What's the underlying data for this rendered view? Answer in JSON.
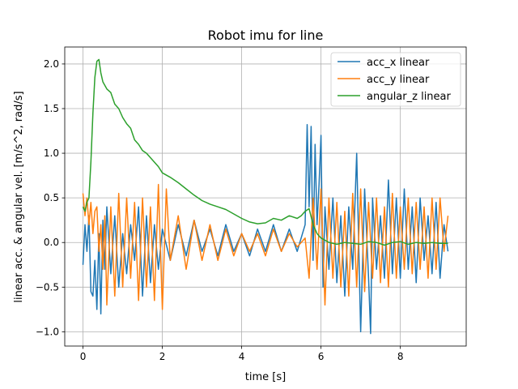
{
  "chart_data": {
    "type": "line",
    "title": "Robot imu for line",
    "xlabel": "time [s]",
    "ylabel": "linear acc. & angular vel. [m/s^2, rad/s]",
    "xlim": [
      -0.46,
      9.66
    ],
    "ylim": [
      -1.16,
      2.19
    ],
    "xticks": [
      0,
      2,
      4,
      6,
      8
    ],
    "yticks": [
      -1.0,
      -0.5,
      0.0,
      0.5,
      1.0,
      1.5,
      2.0
    ],
    "xtick_labels": [
      "0",
      "2",
      "4",
      "6",
      "8"
    ],
    "ytick_labels": [
      "−1.0",
      "−0.5",
      "0.0",
      "0.5",
      "1.0",
      "1.5",
      "2.0"
    ],
    "grid": true,
    "legend_position": "top-right",
    "series": [
      {
        "name": "acc_x linear",
        "color": "#1f77b4",
        "x": [
          0.0,
          0.05,
          0.1,
          0.15,
          0.2,
          0.25,
          0.3,
          0.35,
          0.4,
          0.45,
          0.5,
          0.55,
          0.6,
          0.7,
          0.8,
          0.9,
          1.0,
          1.1,
          1.2,
          1.3,
          1.4,
          1.5,
          1.6,
          1.7,
          1.8,
          1.9,
          2.0,
          2.2,
          2.4,
          2.6,
          2.8,
          3.0,
          3.2,
          3.4,
          3.6,
          3.8,
          4.0,
          4.2,
          4.4,
          4.6,
          4.8,
          5.0,
          5.2,
          5.4,
          5.6,
          5.65,
          5.7,
          5.75,
          5.8,
          5.85,
          5.9,
          5.95,
          6.0,
          6.05,
          6.1,
          6.2,
          6.3,
          6.4,
          6.5,
          6.6,
          6.7,
          6.8,
          6.9,
          7.0,
          7.1,
          7.2,
          7.25,
          7.3,
          7.4,
          7.5,
          7.6,
          7.7,
          7.8,
          7.9,
          8.0,
          8.1,
          8.2,
          8.3,
          8.4,
          8.5,
          8.6,
          8.7,
          8.8,
          8.9,
          9.0,
          9.1,
          9.2
        ],
        "values": [
          -0.25,
          0.2,
          -0.1,
          0.3,
          -0.55,
          -0.6,
          -0.2,
          -0.75,
          0.1,
          -0.8,
          0.25,
          -0.3,
          0.4,
          -0.35,
          0.3,
          -0.5,
          0.1,
          -0.35,
          0.2,
          -0.2,
          0.4,
          -0.6,
          0.3,
          -0.45,
          0.2,
          -0.3,
          0.15,
          -0.2,
          0.2,
          -0.15,
          0.25,
          -0.1,
          0.15,
          -0.15,
          0.2,
          -0.1,
          0.1,
          -0.15,
          0.15,
          -0.1,
          0.2,
          -0.1,
          0.15,
          -0.1,
          0.2,
          1.32,
          0.4,
          1.3,
          -0.2,
          1.1,
          0.2,
          0.65,
          1.2,
          -0.5,
          0.4,
          -0.3,
          0.5,
          -0.45,
          0.3,
          -0.6,
          0.4,
          -0.3,
          1.0,
          -1.0,
          0.6,
          -0.4,
          -1.02,
          0.5,
          -0.3,
          0.3,
          -0.4,
          0.7,
          -0.35,
          0.5,
          -0.4,
          0.6,
          -0.3,
          0.4,
          -0.45,
          0.5,
          -0.2,
          0.3,
          -0.35,
          0.45,
          -0.4,
          0.2,
          -0.1
        ]
      },
      {
        "name": "acc_y linear",
        "color": "#ff7f0e",
        "x": [
          0.0,
          0.05,
          0.1,
          0.15,
          0.2,
          0.25,
          0.3,
          0.35,
          0.4,
          0.45,
          0.5,
          0.55,
          0.6,
          0.7,
          0.8,
          0.9,
          1.0,
          1.1,
          1.2,
          1.3,
          1.4,
          1.5,
          1.6,
          1.7,
          1.8,
          1.9,
          2.0,
          2.1,
          2.2,
          2.4,
          2.6,
          2.8,
          3.0,
          3.2,
          3.4,
          3.6,
          3.8,
          4.0,
          4.2,
          4.4,
          4.6,
          4.8,
          5.0,
          5.2,
          5.4,
          5.6,
          5.7,
          5.8,
          5.9,
          6.0,
          6.1,
          6.2,
          6.3,
          6.4,
          6.5,
          6.6,
          6.7,
          6.8,
          6.9,
          7.0,
          7.1,
          7.2,
          7.3,
          7.4,
          7.5,
          7.6,
          7.7,
          7.8,
          7.9,
          8.0,
          8.1,
          8.2,
          8.3,
          8.4,
          8.5,
          8.6,
          8.7,
          8.8,
          8.9,
          9.0,
          9.1,
          9.2
        ],
        "values": [
          0.55,
          0.3,
          0.5,
          0.2,
          0.45,
          0.1,
          0.35,
          0.4,
          -0.1,
          0.2,
          -0.3,
          0.3,
          -0.7,
          0.4,
          -0.6,
          0.55,
          -0.5,
          0.5,
          -0.4,
          0.45,
          -0.65,
          0.5,
          -0.5,
          0.4,
          -0.65,
          0.65,
          -0.75,
          0.6,
          -0.2,
          0.3,
          -0.3,
          0.25,
          -0.2,
          0.2,
          -0.2,
          0.15,
          -0.15,
          0.1,
          -0.1,
          0.1,
          -0.15,
          0.15,
          -0.1,
          0.1,
          -0.05,
          0.05,
          -0.4,
          0.5,
          -0.3,
          0.6,
          -0.7,
          0.5,
          -0.4,
          0.45,
          -0.5,
          0.35,
          -0.6,
          0.55,
          -0.5,
          0.6,
          -0.55,
          0.45,
          -0.4,
          0.5,
          -0.45,
          0.4,
          -0.5,
          0.55,
          -0.4,
          0.4,
          -0.3,
          0.5,
          -0.35,
          0.45,
          -0.3,
          0.4,
          -0.4,
          0.5,
          -0.3,
          0.5,
          -0.1,
          0.3
        ]
      },
      {
        "name": "angular_z linear",
        "color": "#2ca02c",
        "x": [
          0.0,
          0.05,
          0.1,
          0.15,
          0.2,
          0.25,
          0.3,
          0.35,
          0.4,
          0.45,
          0.5,
          0.6,
          0.7,
          0.8,
          0.9,
          1.0,
          1.1,
          1.2,
          1.3,
          1.4,
          1.5,
          1.6,
          1.7,
          1.8,
          1.9,
          2.0,
          2.2,
          2.4,
          2.6,
          2.8,
          3.0,
          3.2,
          3.4,
          3.6,
          3.8,
          4.0,
          4.2,
          4.4,
          4.6,
          4.8,
          5.0,
          5.2,
          5.4,
          5.5,
          5.6,
          5.7,
          5.8,
          5.9,
          6.0,
          6.2,
          6.4,
          6.6,
          6.8,
          7.0,
          7.2,
          7.4,
          7.6,
          7.8,
          8.0,
          8.2,
          8.4,
          8.6,
          8.8,
          9.0,
          9.2
        ],
        "values": [
          0.4,
          0.35,
          0.45,
          0.5,
          0.9,
          1.45,
          1.85,
          2.03,
          2.05,
          1.9,
          1.8,
          1.72,
          1.68,
          1.55,
          1.5,
          1.4,
          1.33,
          1.28,
          1.15,
          1.1,
          1.03,
          1.0,
          0.95,
          0.9,
          0.85,
          0.78,
          0.73,
          0.67,
          0.6,
          0.53,
          0.47,
          0.43,
          0.4,
          0.37,
          0.32,
          0.27,
          0.23,
          0.21,
          0.22,
          0.27,
          0.25,
          0.3,
          0.27,
          0.3,
          0.35,
          0.38,
          0.2,
          0.1,
          0.05,
          0.0,
          -0.02,
          0.0,
          -0.01,
          -0.02,
          0.01,
          0.0,
          -0.03,
          0.0,
          0.01,
          -0.02,
          0.0,
          -0.01,
          0.0,
          -0.01,
          -0.01
        ]
      }
    ]
  }
}
